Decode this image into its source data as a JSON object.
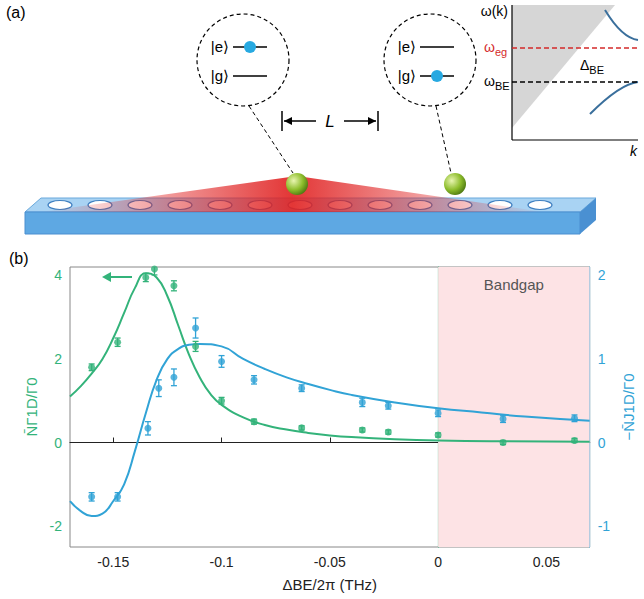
{
  "panel_a": {
    "label": "(a)",
    "atoms": [
      {
        "levels": [
          "|e⟩",
          "|g⟩"
        ],
        "occupied": 0
      },
      {
        "levels": [
          "|e⟩",
          "|g⟩"
        ],
        "occupied": 1
      }
    ],
    "separation": "L",
    "inset": {
      "y_axis": "ω(k)",
      "x_axis": "k",
      "levels": [
        {
          "base": "ω",
          "sub": "eg",
          "color": "#d42a2a"
        },
        {
          "base": "ω",
          "sub": "BE",
          "color": "#000000"
        }
      ],
      "gap": {
        "base": "Δ",
        "sub": "BE"
      }
    }
  },
  "chart_data": {
    "type": "scatter",
    "title": "(b)",
    "xlabel": "ΔBE/2π (THz)",
    "ylabel": "N̄Γ1D/Γ0",
    "y2label": "−N̄J1D/Γ0",
    "xlim": [
      -0.17,
      0.07
    ],
    "xticks": [
      -0.15,
      -0.1,
      -0.05,
      0,
      0.05
    ],
    "ylim": [
      -2.5,
      4.2
    ],
    "yticks": [
      -2,
      0,
      2,
      4
    ],
    "y2lim": [
      -1.25,
      2.1
    ],
    "y2ticks": [
      -1,
      0,
      1,
      2
    ],
    "grid": false,
    "annotations": [
      {
        "text": "Bandgap",
        "x": [
          0,
          0.07
        ]
      }
    ],
    "series": [
      {
        "type": "scatter",
        "color": "#33b37a",
        "marker": "circle",
        "x": [
          -0.16,
          -0.148,
          -0.135,
          -0.131,
          -0.122,
          -0.112,
          -0.1,
          -0.085,
          -0.063,
          -0.035,
          -0.023,
          0,
          0.03,
          0.063
        ],
        "values": [
          1.8,
          2.4,
          3.95,
          4.15,
          3.75,
          2.3,
          1.0,
          0.5,
          0.35,
          0.3,
          0.25,
          0.18,
          0.0,
          0.05
        ],
        "errors": [
          0.08,
          0.1,
          0.1,
          0.14,
          0.12,
          0.12,
          0.08,
          0.06,
          0.05,
          0.05,
          0.05,
          0.05,
          0.05,
          0.05
        ]
      },
      {
        "type": "line",
        "color": "#33b37a",
        "x": [
          -0.17,
          -0.165,
          -0.16,
          -0.155,
          -0.15,
          -0.145,
          -0.14,
          -0.135,
          -0.13,
          -0.125,
          -0.12,
          -0.115,
          -0.11,
          -0.105,
          -0.1,
          -0.09,
          -0.08,
          -0.07,
          -0.06,
          -0.05,
          -0.04,
          -0.02,
          0,
          0.03,
          0.07
        ],
        "values": [
          1.1,
          1.35,
          1.65,
          2.0,
          2.5,
          3.1,
          3.7,
          4.05,
          3.95,
          3.5,
          2.8,
          2.1,
          1.55,
          1.15,
          0.9,
          0.6,
          0.42,
          0.31,
          0.23,
          0.17,
          0.13,
          0.08,
          0.05,
          0.03,
          0.02
        ]
      },
      {
        "type": "scatter",
        "color": "#31a3d6",
        "marker": "circle",
        "axis": "y2",
        "x": [
          -0.16,
          -0.148,
          -0.134,
          -0.129,
          -0.122,
          -0.112,
          -0.1,
          -0.085,
          -0.063,
          -0.035,
          -0.023,
          0,
          0.03,
          0.063
        ],
        "values": [
          -0.65,
          -0.65,
          0.17,
          0.65,
          0.78,
          1.37,
          0.97,
          0.75,
          0.65,
          0.48,
          0.44,
          0.35,
          0.28,
          0.29
        ],
        "errors": [
          0.05,
          0.05,
          0.08,
          0.1,
          0.1,
          0.12,
          0.07,
          0.05,
          0.04,
          0.05,
          0.04,
          0.04,
          0.04,
          0.04
        ]
      },
      {
        "type": "line",
        "color": "#31a3d6",
        "axis": "y2",
        "x": [
          -0.17,
          -0.165,
          -0.16,
          -0.155,
          -0.15,
          -0.145,
          -0.14,
          -0.135,
          -0.13,
          -0.125,
          -0.12,
          -0.115,
          -0.11,
          -0.1,
          -0.09,
          -0.08,
          -0.07,
          -0.06,
          -0.05,
          -0.04,
          -0.02,
          0,
          0.02,
          0.04,
          0.07
        ],
        "values": [
          -0.7,
          -0.82,
          -0.88,
          -0.85,
          -0.7,
          -0.5,
          -0.1,
          0.35,
          0.75,
          1.0,
          1.12,
          1.17,
          1.18,
          1.15,
          1.0,
          0.88,
          0.78,
          0.7,
          0.63,
          0.57,
          0.48,
          0.41,
          0.36,
          0.31,
          0.26
        ]
      }
    ]
  }
}
